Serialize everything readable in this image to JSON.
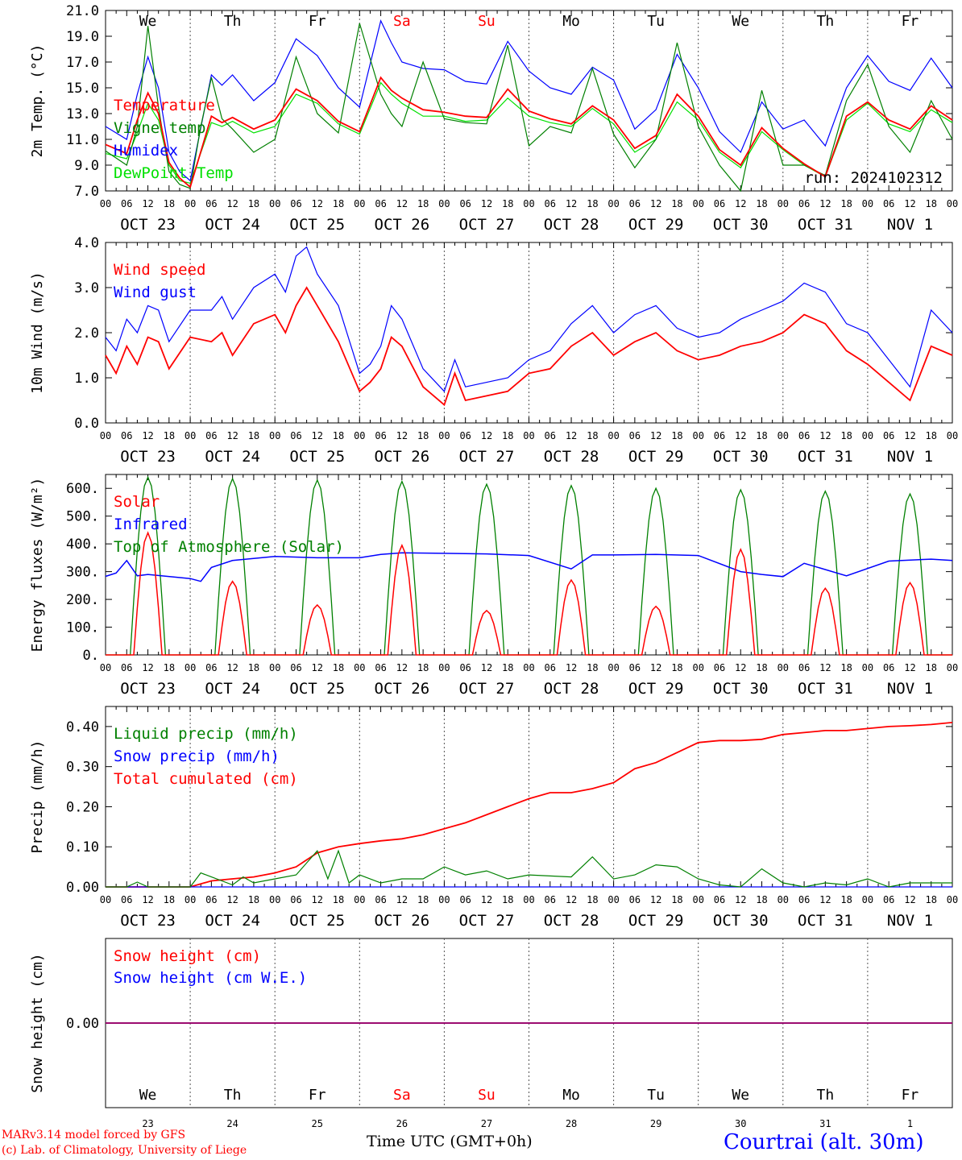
{
  "run_label": "run: 2024102312",
  "xlabel": "Time UTC (GMT+0h)",
  "days": [
    {
      "wd": "We",
      "date": "OCT 23",
      "num": "23",
      "weekend": false
    },
    {
      "wd": "Th",
      "date": "OCT 24",
      "num": "24",
      "weekend": false
    },
    {
      "wd": "Fr",
      "date": "OCT 25",
      "num": "25",
      "weekend": false
    },
    {
      "wd": "Sa",
      "date": "OCT 26",
      "num": "26",
      "weekend": true
    },
    {
      "wd": "Su",
      "date": "OCT 27",
      "num": "27",
      "weekend": true
    },
    {
      "wd": "Mo",
      "date": "OCT 28",
      "num": "28",
      "weekend": false
    },
    {
      "wd": "Tu",
      "date": "OCT 29",
      "num": "29",
      "weekend": false
    },
    {
      "wd": "We",
      "date": "OCT 30",
      "num": "30",
      "weekend": false
    },
    {
      "wd": "Th",
      "date": "OCT 31",
      "num": "31",
      "weekend": false
    },
    {
      "wd": "Fr",
      "date": "NOV  1",
      "num": "1",
      "weekend": false
    }
  ],
  "hour_ticks": [
    "00",
    "06",
    "12",
    "18"
  ],
  "colors": {
    "red": "#ff0000",
    "green": "#008000",
    "blue": "#0000ff",
    "lightgreen": "#00e000",
    "purple": "#800080",
    "weekend": "#ff0000"
  },
  "footer": {
    "model": "MARv3.14 model forced by GFS",
    "lab": "(c) Lab. of Climatology, University of Liege",
    "station": "Courtrai (alt. 30m)"
  },
  "chart_data": [
    {
      "type": "line",
      "ylabel": "2m Temp. (°C)",
      "ylim": [
        7,
        21
      ],
      "yticks": [
        "7.0",
        "9.0",
        "11.0",
        "13.0",
        "15.0",
        "17.0",
        "19.0",
        "21.0"
      ],
      "x_unit": "hours since Oct 23 00 UTC",
      "series": [
        {
          "name": "Temperature",
          "color": "#ff0000",
          "x": [
            0,
            6,
            9,
            12,
            15,
            18,
            21,
            24,
            30,
            33,
            36,
            42,
            48,
            54,
            60,
            66,
            72,
            78,
            81,
            84,
            90,
            96,
            102,
            108,
            114,
            120,
            126,
            132,
            138,
            144,
            150,
            156,
            162,
            168,
            174,
            180,
            186,
            192,
            198,
            204,
            210,
            216,
            222,
            228,
            234,
            240
          ],
          "y": [
            10.6,
            9.9,
            12.5,
            14.6,
            13.0,
            9.2,
            8.0,
            7.3,
            12.8,
            12.3,
            12.7,
            11.8,
            12.5,
            14.9,
            14.0,
            12.4,
            11.6,
            15.8,
            14.8,
            14.2,
            13.3,
            13.1,
            12.8,
            12.7,
            14.9,
            13.2,
            12.6,
            12.2,
            13.6,
            12.5,
            10.3,
            11.3,
            14.5,
            12.8,
            10.2,
            9.0,
            11.9,
            10.3,
            9.1,
            8.1,
            12.8,
            13.9,
            12.5,
            11.8,
            13.6,
            12.5
          ]
        },
        {
          "name": "Vigne temp",
          "color": "#008000",
          "x": [
            0,
            6,
            9,
            12,
            15,
            18,
            21,
            24,
            27,
            30,
            33,
            36,
            42,
            48,
            54,
            60,
            66,
            72,
            78,
            81,
            84,
            90,
            96,
            102,
            108,
            114,
            120,
            126,
            132,
            138,
            144,
            150,
            156,
            162,
            168,
            174,
            180,
            186,
            192,
            198,
            204,
            210,
            216,
            222,
            228,
            234,
            240
          ],
          "y": [
            10.1,
            9.0,
            12.0,
            19.8,
            13.5,
            8.5,
            7.5,
            7.2,
            12.0,
            15.8,
            12.6,
            11.8,
            10.0,
            11.0,
            17.4,
            13.0,
            11.5,
            20.0,
            14.5,
            13.0,
            12.0,
            17.0,
            12.6,
            12.3,
            12.2,
            18.3,
            10.5,
            12.0,
            11.5,
            16.5,
            11.4,
            8.8,
            11.0,
            18.5,
            12.0,
            9.0,
            7.0,
            14.8,
            9.0,
            9.0,
            8.2,
            14.0,
            16.8,
            12.0,
            10.0,
            14.0,
            11.0
          ]
        },
        {
          "name": "Humidex",
          "color": "#0000ff",
          "x": [
            0,
            6,
            9,
            12,
            15,
            18,
            21,
            24,
            30,
            33,
            36,
            42,
            48,
            54,
            60,
            66,
            72,
            78,
            81,
            84,
            90,
            96,
            102,
            108,
            114,
            120,
            126,
            132,
            138,
            144,
            150,
            156,
            162,
            168,
            174,
            180,
            186,
            192,
            198,
            204,
            210,
            216,
            222,
            228,
            234,
            240
          ],
          "y": [
            12.0,
            11.0,
            14.5,
            17.4,
            15.0,
            10.0,
            8.5,
            7.8,
            16.0,
            15.2,
            16.0,
            14.0,
            15.4,
            18.8,
            17.5,
            15.0,
            13.5,
            20.2,
            18.5,
            17.0,
            16.5,
            16.4,
            15.5,
            15.3,
            18.6,
            16.3,
            15.0,
            14.5,
            16.6,
            15.6,
            11.8,
            13.3,
            17.6,
            15.0,
            11.6,
            10.0,
            13.9,
            11.8,
            12.5,
            10.5,
            15.0,
            17.5,
            15.5,
            14.8,
            17.3,
            15.0
          ]
        },
        {
          "name": "DewPoint Temp",
          "color": "#00e000",
          "x": [
            0,
            6,
            9,
            12,
            15,
            18,
            21,
            24,
            30,
            33,
            36,
            42,
            48,
            54,
            60,
            66,
            72,
            78,
            81,
            84,
            90,
            96,
            102,
            108,
            114,
            120,
            126,
            132,
            138,
            144,
            150,
            156,
            162,
            168,
            174,
            180,
            186,
            192,
            198,
            204,
            210,
            216,
            222,
            228,
            234,
            240
          ],
          "y": [
            9.9,
            9.5,
            11.5,
            13.8,
            12.5,
            9.0,
            7.8,
            7.6,
            12.3,
            12.0,
            12.4,
            11.5,
            12.0,
            14.5,
            13.8,
            12.2,
            11.4,
            15.4,
            14.5,
            13.8,
            12.8,
            12.8,
            12.4,
            12.5,
            14.2,
            12.8,
            12.3,
            12.0,
            13.4,
            12.2,
            10.0,
            11.0,
            13.9,
            12.5,
            10.0,
            8.8,
            11.6,
            10.2,
            9.0,
            8.1,
            12.5,
            13.8,
            12.2,
            11.6,
            13.3,
            12.3
          ]
        }
      ]
    },
    {
      "type": "line",
      "ylabel": "10m Wind (m/s)",
      "ylim": [
        0,
        4
      ],
      "yticks": [
        "0.0",
        "1.0",
        "2.0",
        "3.0",
        "4.0"
      ],
      "x_unit": "hours since Oct 23 00 UTC",
      "series": [
        {
          "name": "Wind speed",
          "color": "#ff0000",
          "x": [
            0,
            3,
            6,
            9,
            12,
            15,
            18,
            24,
            30,
            33,
            36,
            42,
            48,
            51,
            54,
            57,
            60,
            66,
            72,
            75,
            78,
            81,
            84,
            90,
            96,
            99,
            102,
            108,
            114,
            120,
            126,
            132,
            138,
            144,
            150,
            156,
            162,
            168,
            174,
            180,
            186,
            192,
            198,
            204,
            210,
            216,
            222,
            228,
            234,
            240
          ],
          "y": [
            1.5,
            1.1,
            1.7,
            1.3,
            1.9,
            1.8,
            1.2,
            1.9,
            1.8,
            2.0,
            1.5,
            2.2,
            2.4,
            2.0,
            2.6,
            3.0,
            2.6,
            1.8,
            0.7,
            0.9,
            1.2,
            1.9,
            1.7,
            0.8,
            0.4,
            1.1,
            0.5,
            0.6,
            0.7,
            1.1,
            1.2,
            1.7,
            2.0,
            1.5,
            1.8,
            2.0,
            1.6,
            1.4,
            1.5,
            1.7,
            1.8,
            2.0,
            2.4,
            2.2,
            1.6,
            1.3,
            0.9,
            0.5,
            1.7,
            1.5
          ]
        },
        {
          "name": "Wind gust",
          "color": "#0000ff",
          "x": [
            0,
            3,
            6,
            9,
            12,
            15,
            18,
            24,
            30,
            33,
            36,
            42,
            48,
            51,
            54,
            57,
            60,
            66,
            72,
            75,
            78,
            81,
            84,
            90,
            96,
            99,
            102,
            108,
            114,
            120,
            126,
            132,
            138,
            144,
            150,
            156,
            162,
            168,
            174,
            180,
            186,
            192,
            198,
            204,
            210,
            216,
            222,
            228,
            234,
            240
          ],
          "y": [
            1.9,
            1.6,
            2.3,
            2.0,
            2.6,
            2.5,
            1.8,
            2.5,
            2.5,
            2.8,
            2.3,
            3.0,
            3.3,
            2.9,
            3.7,
            3.9,
            3.3,
            2.6,
            1.1,
            1.3,
            1.7,
            2.6,
            2.3,
            1.2,
            0.7,
            1.4,
            0.8,
            0.9,
            1.0,
            1.4,
            1.6,
            2.2,
            2.6,
            2.0,
            2.4,
            2.6,
            2.1,
            1.9,
            2.0,
            2.3,
            2.5,
            2.7,
            3.1,
            2.9,
            2.2,
            2.0,
            1.4,
            0.8,
            2.5,
            2.0
          ]
        }
      ]
    },
    {
      "type": "line",
      "ylabel": "Energy fluxes (W/m²)",
      "ylim": [
        0,
        650
      ],
      "yticks": [
        "0.",
        "100.",
        "200.",
        "300.",
        "400.",
        "500.",
        "600."
      ],
      "x_unit": "hours since Oct 23 00 UTC",
      "series": [
        {
          "name": "Solar",
          "color": "#ff0000",
          "peaks_at_noon": [
            440,
            265,
            180,
            395,
            160,
            270,
            175,
            380,
            240,
            260
          ]
        },
        {
          "name": "Infrared",
          "color": "#0000ff",
          "x": [
            0,
            3,
            6,
            9,
            12,
            24,
            27,
            30,
            36,
            48,
            60,
            72,
            78,
            84,
            96,
            108,
            120,
            132,
            138,
            144,
            156,
            168,
            180,
            186,
            192,
            198,
            210,
            222,
            234,
            240
          ],
          "y": [
            283,
            295,
            340,
            285,
            290,
            275,
            265,
            315,
            340,
            355,
            350,
            350,
            362,
            368,
            366,
            364,
            358,
            310,
            360,
            360,
            362,
            358,
            300,
            290,
            282,
            330,
            285,
            338,
            345,
            340
          ]
        },
        {
          "name": "Top of Atmosphere (Solar)",
          "color": "#008000",
          "peaks_at_noon": [
            640,
            635,
            630,
            625,
            615,
            610,
            600,
            595,
            590,
            580
          ]
        }
      ]
    },
    {
      "type": "line",
      "ylabel": "Precip (mm/h)",
      "ylim": [
        0,
        0.45
      ],
      "yticks": [
        "0.00",
        "0.10",
        "0.20",
        "0.30",
        "0.40"
      ],
      "x_unit": "hours since Oct 23 00 UTC",
      "series": [
        {
          "name": "Liquid precip (mm/h)",
          "color": "#008000",
          "x": [
            0,
            6,
            9,
            12,
            24,
            27,
            30,
            36,
            39,
            42,
            48,
            54,
            60,
            63,
            66,
            69,
            72,
            78,
            84,
            90,
            96,
            102,
            108,
            114,
            120,
            132,
            138,
            144,
            150,
            156,
            162,
            168,
            174,
            180,
            186,
            192,
            198,
            204,
            210,
            216,
            222,
            228,
            234,
            240
          ],
          "y": [
            0,
            0,
            0.012,
            0,
            0,
            0.035,
            0.025,
            0.005,
            0.025,
            0.01,
            0.02,
            0.03,
            0.09,
            0.02,
            0.09,
            0.01,
            0.03,
            0.01,
            0.02,
            0.02,
            0.05,
            0.03,
            0.04,
            0.02,
            0.03,
            0.025,
            0.075,
            0.02,
            0.03,
            0.055,
            0.05,
            0.02,
            0.005,
            0,
            0.045,
            0.01,
            0,
            0.01,
            0.005,
            0.02,
            0,
            0.01,
            0.01,
            0.01
          ]
        },
        {
          "name": "Snow precip (mm/h)",
          "color": "#0000ff",
          "x": [
            0,
            240
          ],
          "y": [
            0,
            0
          ]
        },
        {
          "name": "Total cumulated (cm)",
          "color": "#ff0000",
          "x": [
            0,
            24,
            30,
            36,
            42,
            48,
            54,
            60,
            66,
            72,
            78,
            84,
            90,
            96,
            102,
            108,
            114,
            120,
            126,
            132,
            138,
            144,
            150,
            156,
            162,
            168,
            174,
            180,
            186,
            192,
            198,
            204,
            210,
            216,
            222,
            228,
            234,
            240
          ],
          "y": [
            0,
            0,
            0.015,
            0.02,
            0.025,
            0.035,
            0.05,
            0.085,
            0.1,
            0.108,
            0.115,
            0.12,
            0.13,
            0.145,
            0.16,
            0.18,
            0.2,
            0.22,
            0.235,
            0.235,
            0.245,
            0.26,
            0.295,
            0.31,
            0.335,
            0.36,
            0.365,
            0.365,
            0.368,
            0.38,
            0.385,
            0.39,
            0.39,
            0.395,
            0.4,
            0.402,
            0.405,
            0.41
          ]
        }
      ]
    },
    {
      "type": "line",
      "ylabel": "Snow height (cm)",
      "ylim": [
        -0.1,
        0.1
      ],
      "yticks": [
        "0.00"
      ],
      "x_unit": "hours since Oct 23 00 UTC",
      "series": [
        {
          "name": "Snow height (cm)",
          "color": "#ff0000",
          "x": [
            0,
            240
          ],
          "y": [
            0,
            0
          ]
        },
        {
          "name": "Snow height (cm W.E.)",
          "color": "#0000ff",
          "x": [
            0,
            240
          ],
          "y": [
            0,
            0
          ]
        }
      ]
    }
  ]
}
